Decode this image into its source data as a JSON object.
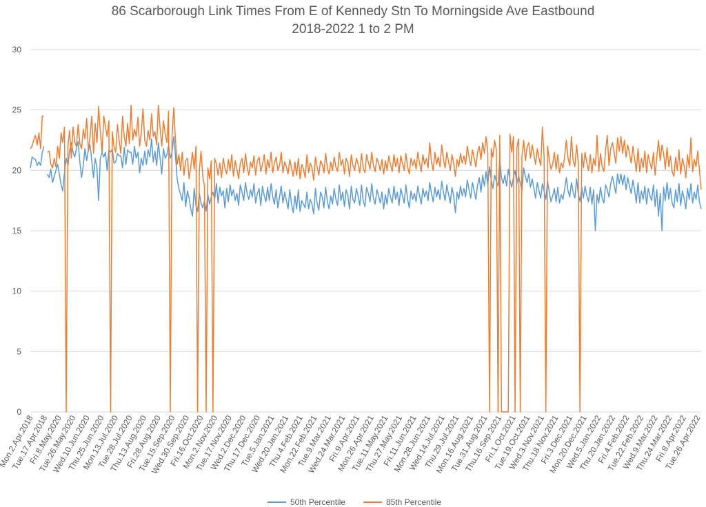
{
  "chart_data": {
    "type": "line",
    "title": "86 Scarborough Link Times From E of Kennedy Stn To Morningside Ave Eastbound",
    "subtitle": "2018-2022 1 to 2 PM",
    "xlabel": "",
    "ylabel": "",
    "ylim": [
      0,
      30
    ],
    "yticks": [
      0,
      5,
      10,
      15,
      20,
      25,
      30
    ],
    "grid": true,
    "legend": "bottom",
    "colors": {
      "p50": "#5B9BD5",
      "p85": "#ED7D31",
      "grid": "#D9D9D9",
      "text": "#595959"
    },
    "x_labels": [
      "Mon.2.Apr.2018",
      "Tue.17.Apr.2018",
      "Fri.8.May.2020",
      "Tue.26.May.2020",
      "Wed.10.Jun.2020",
      "Thu.25.Jun.2020",
      "Mon.13.Jul.2020",
      "Tue.28.Jul.2020",
      "Thu.13.Aug.2020",
      "Fri.28.Aug.2020",
      "Tue.15.Sep.2020",
      "Wed.30.Sep.2020",
      "Fri.16.Oct.2020",
      "Mon.2.Nov.2020",
      "Tue.17.Nov.2020",
      "Wed.2.Dec.2020",
      "Thu.17.Dec.2020",
      "Tue.5.Jan.2021",
      "Wed.20.Jan.2021",
      "Thu.4.Feb.2021",
      "Mon.22.Feb.2021",
      "Tue.9.Mar.2021",
      "Wed.24.Mar.2021",
      "Fri.9.Apr.2021",
      "Mon.26.Apr.2021",
      "Tue.11.May.2021",
      "Thu.27.May.2021",
      "Fri.11.Jun.2021",
      "Mon.28.Jun.2021",
      "Wed.14.Jul.2021",
      "Thu.29.Jul.2021",
      "Mon.16.Aug.2021",
      "Tue.31.Aug.2021",
      "Thu.16.Sep.2021",
      "Fri.1.Oct.2021",
      "Tue.19.Oct.2021",
      "Wed.3.Nov.2021",
      "Thu.18.Nov.2021",
      "Fri.3.Dec.2021",
      "Mon.20.Dec.2021",
      "Wed.5.Jan.2022",
      "Thu.20.Jan.2022",
      "Fri.4.Feb.2022",
      "Tue.22.Feb.2022",
      "Wed.9.Mar.2022",
      "Thu.24.Mar.2022",
      "Fri.8.Apr.2022",
      "Tue.26.Apr.2022"
    ],
    "series": [
      {
        "name": "50th Percentile",
        "key": "p50",
        "values": [
          20.2,
          21.1,
          21.0,
          20.9,
          20.4,
          20.7,
          20.4,
          21.5,
          22.0,
          null,
          19.7,
          19.4,
          20.1,
          19.0,
          19.5,
          20.0,
          20.5,
          19.7,
          18.8,
          18.3,
          19.8,
          21.0,
          20.4,
          21.6,
          22.3,
          21.5,
          21.1,
          21.8,
          22.4,
          20.7,
          19.4,
          20.4,
          21.8,
          20.8,
          21.7,
          22.1,
          20.8,
          19.4,
          21.0,
          20.2,
          17.5,
          21.0,
          21.5,
          21.1,
          21.5,
          20.0,
          21.7,
          21.5,
          21.8,
          20.6,
          20.7,
          21.4,
          21.2,
          21.2,
          20.2,
          21.9,
          20.5,
          21.7,
          21.5,
          21.5,
          20.5,
          22.0,
          21.0,
          21.5,
          19.8,
          21.0,
          20.4,
          21.6,
          20.5,
          21.7,
          21.1,
          22.6,
          20.7,
          21.6,
          20.4,
          22.3,
          21.0,
          19.7,
          21.8,
          21.0,
          21.3,
          22.1,
          21.0,
          21.5,
          22.8,
          21.3,
          19.3,
          18.5,
          18.0,
          17.5,
          19.0,
          17.0,
          18.3,
          17.7,
          16.8,
          16.2,
          18.5,
          17.1,
          16.6,
          18.1,
          17.3,
          16.9,
          17.5,
          16.6,
          18.0,
          17.2,
          17.8,
          18.2,
          17.6,
          18.9,
          17.3,
          18.6,
          17.9,
          18.3,
          16.9,
          18.5,
          17.4,
          18.8,
          17.9,
          18.4,
          17.5,
          18.1,
          17.1,
          18.8,
          18.2,
          17.5,
          19.0,
          18.1,
          17.6,
          18.4,
          17.8,
          18.9,
          17.3,
          18.1,
          18.5,
          17.1,
          18.7,
          17.9,
          17.4,
          18.6,
          17.5,
          18.9,
          17.8,
          17.2,
          18.4,
          16.9,
          17.8,
          18.7,
          17.3,
          18.2,
          17.5,
          16.8,
          18.4,
          17.2,
          16.5,
          17.9,
          16.8,
          18.4,
          16.6,
          17.5,
          17.2,
          16.9,
          18.2,
          16.8,
          17.6,
          17.2,
          16.4,
          18.5,
          17.3,
          16.7,
          18.2,
          17.8,
          16.9,
          18.6,
          17.4,
          16.8,
          17.9,
          17.2,
          18.5,
          17.6,
          17.1,
          18.8,
          17.5,
          18.2,
          17.0,
          18.4,
          17.9,
          16.8,
          18.7,
          17.6,
          17.3,
          18.5,
          17.9,
          17.1,
          18.8,
          17.5,
          17.0,
          18.6,
          18.1,
          17.4,
          18.9,
          17.7,
          17.2,
          18.4,
          17.9,
          17.3,
          18.2,
          16.8,
          18.0,
          17.2,
          18.5,
          17.8,
          17.3,
          18.7,
          17.6,
          18.2,
          17.1,
          18.5,
          17.9,
          17.3,
          18.8,
          17.6,
          16.9,
          18.3,
          17.6,
          18.1,
          17.4,
          18.7,
          17.9,
          17.2,
          18.5,
          17.8,
          18.3,
          17.5,
          19.0,
          18.1,
          17.4,
          18.6,
          17.8,
          18.4,
          17.6,
          19.1,
          18.2,
          17.5,
          18.8,
          18.0,
          17.3,
          18.6,
          17.9,
          16.5,
          18.2,
          17.6,
          18.7,
          17.9,
          18.5,
          17.8,
          19.2,
          18.4,
          17.7,
          19.0,
          18.3,
          17.6,
          18.8,
          19.4,
          18.2,
          19.6,
          18.7,
          19.9,
          18.8,
          20.3,
          19.2,
          18.5,
          19.6,
          19.1,
          18.7,
          20.9,
          19.4,
          18.9,
          19.6,
          18.7,
          20.1,
          19.2,
          18.6,
          19.4,
          20.0,
          18.9,
          19.5,
          19.0,
          18.3,
          20.2,
          19.5,
          19.0,
          19.7,
          18.6,
          19.3,
          18.5,
          17.7,
          19.0,
          18.3,
          17.7,
          18.9,
          18.3,
          17.6,
          19.1,
          18.2,
          17.4,
          17.9,
          18.5,
          17.4,
          18.6,
          17.3,
          18.0,
          17.6,
          18.4,
          19.4,
          18.3,
          17.8,
          19.0,
          18.2,
          17.7,
          19.3,
          18.1,
          17.4,
          18.6,
          17.7,
          18.7,
          17.9,
          17.4,
          18.6,
          17.2,
          18.4,
          15.0,
          18.0,
          17.3,
          18.6,
          17.7,
          17.3,
          18.8,
          18.4,
          17.8,
          18.9,
          19.5,
          18.8,
          18.1,
          19.7,
          18.9,
          19.7,
          18.8,
          19.6,
          18.4,
          19.4,
          18.7,
          18.1,
          19.2,
          18.4,
          17.3,
          19.0,
          17.3,
          18.3,
          17.6,
          18.7,
          17.2,
          18.5,
          17.9,
          17.5,
          18.8,
          17.0,
          18.4,
          16.2,
          18.1,
          15.0,
          18.6,
          17.5,
          19.0,
          17.6,
          18.5,
          17.3,
          16.9,
          18.4,
          17.4,
          18.9,
          17.1,
          18.3,
          17.7,
          16.8,
          18.5,
          17.6,
          18.9,
          17.3,
          18.2,
          17.6,
          18.8,
          17.4,
          16.8
        ]
      },
      {
        "name": "85th Percentile",
        "key": "p85",
        "values": [
          21.8,
          22.0,
          22.5,
          22.9,
          22.1,
          23.1,
          21.8,
          24.5,
          24.5,
          null,
          21.5,
          21.6,
          20.5,
          20.2,
          21.0,
          20.3,
          22.0,
          21.0,
          23.1,
          22.3,
          23.6,
          0.0,
          22.0,
          23.3,
          21.0,
          23.6,
          22.3,
          22.0,
          23.8,
          22.2,
          21.8,
          23.4,
          22.6,
          24.3,
          21.6,
          22.9,
          24.5,
          21.4,
          23.9,
          22.3,
          25.3,
          23.2,
          21.5,
          24.5,
          23.6,
          22.8,
          24.1,
          0.0,
          23.2,
          22.0,
          21.5,
          23.8,
          22.5,
          21.4,
          24.5,
          22.8,
          22.0,
          23.9,
          22.2,
          25.4,
          22.5,
          23.4,
          22.8,
          24.4,
          22.0,
          23.1,
          25.1,
          22.5,
          22.0,
          23.3,
          22.5,
          24.7,
          22.8,
          23.2,
          22.1,
          25.4,
          23.5,
          22.0,
          24.1,
          23.0,
          22.3,
          24.9,
          0.0,
          22.8,
          25.2,
          22.6,
          20.5,
          21.3,
          20.0,
          21.5,
          19.6,
          20.8,
          21.0,
          19.3,
          20.3,
          21.5,
          20.1,
          22.0,
          0.0,
          20.0,
          21.6,
          19.5,
          18.7,
          0.0,
          20.2,
          19.3,
          20.8,
          0.0,
          21.0,
          20.5,
          19.6,
          20.6,
          19.4,
          21.0,
          20.2,
          19.7,
          20.9,
          20.0,
          21.3,
          19.5,
          20.8,
          20.1,
          19.3,
          20.6,
          21.0,
          19.8,
          21.4,
          20.3,
          19.6,
          20.7,
          20.2,
          21.2,
          19.6,
          20.8,
          21.1,
          19.9,
          20.5,
          21.3,
          19.7,
          20.9,
          20.2,
          21.5,
          19.8,
          20.6,
          21.1,
          20.0,
          20.4,
          21.5,
          19.8,
          20.7,
          20.3,
          19.7,
          20.9,
          20.2,
          19.5,
          20.7,
          19.6,
          21.0,
          19.3,
          20.5,
          20.1,
          19.4,
          21.3,
          19.8,
          20.6,
          20.2,
          19.2,
          21.1,
          20.3,
          19.6,
          20.8,
          20.5,
          19.8,
          21.4,
          20.2,
          19.7,
          20.7,
          20.0,
          21.1,
          20.3,
          19.9,
          21.5,
          20.4,
          20.9,
          19.7,
          21.0,
          20.6,
          19.5,
          21.3,
          20.4,
          20.0,
          21.0,
          20.5,
          19.8,
          21.4,
          20.2,
          19.8,
          21.3,
          20.7,
          20.1,
          21.5,
          20.4,
          19.9,
          21.0,
          20.6,
          20.0,
          20.9,
          19.7,
          20.8,
          20.0,
          21.2,
          20.5,
          19.9,
          21.3,
          20.3,
          21.0,
          19.8,
          21.2,
          20.6,
          20.0,
          21.4,
          20.3,
          19.7,
          21.0,
          20.4,
          20.9,
          20.1,
          21.5,
          20.6,
          19.9,
          21.3,
          20.5,
          21.0,
          20.2,
          22.3,
          20.7,
          20.0,
          21.5,
          20.5,
          21.1,
          20.3,
          22.1,
          20.9,
          20.2,
          21.5,
          20.7,
          20.0,
          21.3,
          20.6,
          19.5,
          20.9,
          20.3,
          21.4,
          20.6,
          21.2,
          20.5,
          22.0,
          21.1,
          20.4,
          21.7,
          21.0,
          20.3,
          21.5,
          22.0,
          20.9,
          22.3,
          21.4,
          22.8,
          21.5,
          0.0,
          21.8,
          21.1,
          22.5,
          21.7,
          0.0,
          22.9,
          0.0,
          0.0,
          0.0,
          0.0,
          0.0,
          23.0,
          21.5,
          22.8,
          0.0,
          21.9,
          22.6,
          0.0,
          21.1,
          22.5,
          20.8,
          21.9,
          22.3,
          21.0,
          22.1,
          21.3,
          20.5,
          21.8,
          21.0,
          20.4,
          23.6,
          21.1,
          0.0,
          22.0,
          20.9,
          20.1,
          20.5,
          21.5,
          20.1,
          21.3,
          19.8,
          20.6,
          20.2,
          21.1,
          22.5,
          21.0,
          20.4,
          22.8,
          20.8,
          20.3,
          22.1,
          20.7,
          0.0,
          21.4,
          20.2,
          21.5,
          20.6,
          20.0,
          21.3,
          19.8,
          21.0,
          20.4,
          22.9,
          19.9,
          21.4,
          20.3,
          19.9,
          21.7,
          22.9,
          20.4,
          21.8,
          22.3,
          21.5,
          20.6,
          22.7,
          21.6,
          22.8,
          21.4,
          22.5,
          21.1,
          22.1,
          21.4,
          20.6,
          22.0,
          21.0,
          19.9,
          21.8,
          19.9,
          21.0,
          20.2,
          21.6,
          19.8,
          21.3,
          20.6,
          20.1,
          21.5,
          19.6,
          21.1,
          22.5,
          20.8,
          22.1,
          21.4,
          20.1,
          21.9,
          20.3,
          21.2,
          19.9,
          19.5,
          21.1,
          20.0,
          21.7,
          19.7,
          21.0,
          20.4,
          19.4,
          21.3,
          20.2,
          22.7,
          19.9,
          20.9,
          20.3,
          21.6,
          20.0,
          18.4
        ]
      }
    ]
  }
}
